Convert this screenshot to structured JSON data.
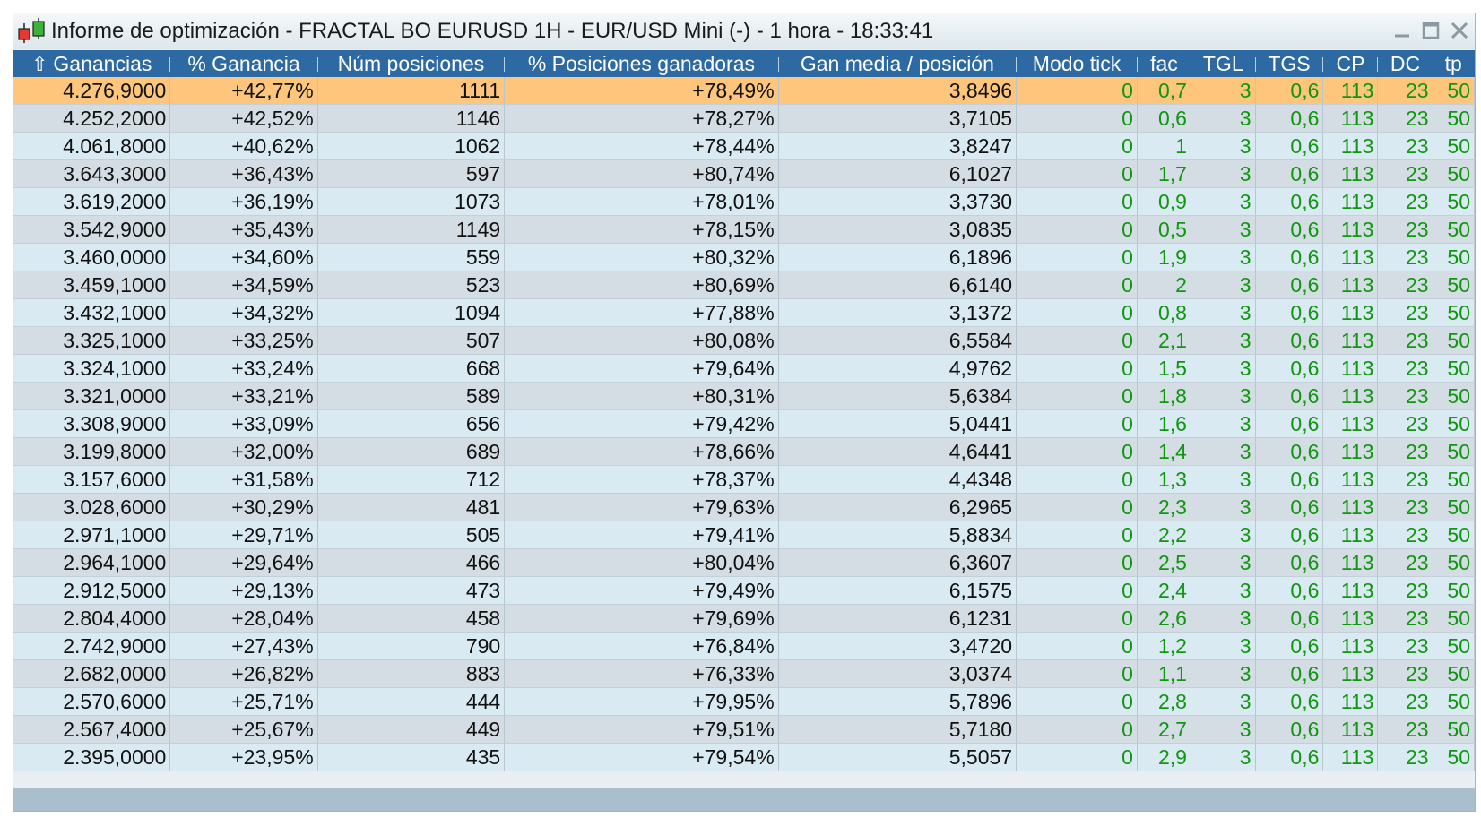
{
  "window": {
    "title": "Informe de optimización - FRACTAL BO EURUSD 1H - EUR/USD Mini (-) - 1 hora - 18:33:41"
  },
  "colors": {
    "header_bg": "#2d6aa3",
    "selected_row": "#fec67c",
    "param_text": "#119611"
  },
  "table": {
    "sort_icon": "sort-up-arrow-icon",
    "sort_glyph": "⇧",
    "columns": [
      "Ganancias",
      "% Ganancia",
      "Núm posiciones",
      "% Posiciones ganadoras",
      "Gan media / posición",
      "Modo tick",
      "fac",
      "TGL",
      "TGS",
      "CP",
      "DC",
      "tp"
    ],
    "selected_row": 0,
    "rows": [
      [
        "4.276,9000",
        "+42,77%",
        "1111",
        "+78,49%",
        "3,8496",
        "0",
        "0,7",
        "3",
        "0,6",
        "113",
        "23",
        "50"
      ],
      [
        "4.252,2000",
        "+42,52%",
        "1146",
        "+78,27%",
        "3,7105",
        "0",
        "0,6",
        "3",
        "0,6",
        "113",
        "23",
        "50"
      ],
      [
        "4.061,8000",
        "+40,62%",
        "1062",
        "+78,44%",
        "3,8247",
        "0",
        "1",
        "3",
        "0,6",
        "113",
        "23",
        "50"
      ],
      [
        "3.643,3000",
        "+36,43%",
        "597",
        "+80,74%",
        "6,1027",
        "0",
        "1,7",
        "3",
        "0,6",
        "113",
        "23",
        "50"
      ],
      [
        "3.619,2000",
        "+36,19%",
        "1073",
        "+78,01%",
        "3,3730",
        "0",
        "0,9",
        "3",
        "0,6",
        "113",
        "23",
        "50"
      ],
      [
        "3.542,9000",
        "+35,43%",
        "1149",
        "+78,15%",
        "3,0835",
        "0",
        "0,5",
        "3",
        "0,6",
        "113",
        "23",
        "50"
      ],
      [
        "3.460,0000",
        "+34,60%",
        "559",
        "+80,32%",
        "6,1896",
        "0",
        "1,9",
        "3",
        "0,6",
        "113",
        "23",
        "50"
      ],
      [
        "3.459,1000",
        "+34,59%",
        "523",
        "+80,69%",
        "6,6140",
        "0",
        "2",
        "3",
        "0,6",
        "113",
        "23",
        "50"
      ],
      [
        "3.432,1000",
        "+34,32%",
        "1094",
        "+77,88%",
        "3,1372",
        "0",
        "0,8",
        "3",
        "0,6",
        "113",
        "23",
        "50"
      ],
      [
        "3.325,1000",
        "+33,25%",
        "507",
        "+80,08%",
        "6,5584",
        "0",
        "2,1",
        "3",
        "0,6",
        "113",
        "23",
        "50"
      ],
      [
        "3.324,1000",
        "+33,24%",
        "668",
        "+79,64%",
        "4,9762",
        "0",
        "1,5",
        "3",
        "0,6",
        "113",
        "23",
        "50"
      ],
      [
        "3.321,0000",
        "+33,21%",
        "589",
        "+80,31%",
        "5,6384",
        "0",
        "1,8",
        "3",
        "0,6",
        "113",
        "23",
        "50"
      ],
      [
        "3.308,9000",
        "+33,09%",
        "656",
        "+79,42%",
        "5,0441",
        "0",
        "1,6",
        "3",
        "0,6",
        "113",
        "23",
        "50"
      ],
      [
        "3.199,8000",
        "+32,00%",
        "689",
        "+78,66%",
        "4,6441",
        "0",
        "1,4",
        "3",
        "0,6",
        "113",
        "23",
        "50"
      ],
      [
        "3.157,6000",
        "+31,58%",
        "712",
        "+78,37%",
        "4,4348",
        "0",
        "1,3",
        "3",
        "0,6",
        "113",
        "23",
        "50"
      ],
      [
        "3.028,6000",
        "+30,29%",
        "481",
        "+79,63%",
        "6,2965",
        "0",
        "2,3",
        "3",
        "0,6",
        "113",
        "23",
        "50"
      ],
      [
        "2.971,1000",
        "+29,71%",
        "505",
        "+79,41%",
        "5,8834",
        "0",
        "2,2",
        "3",
        "0,6",
        "113",
        "23",
        "50"
      ],
      [
        "2.964,1000",
        "+29,64%",
        "466",
        "+80,04%",
        "6,3607",
        "0",
        "2,5",
        "3",
        "0,6",
        "113",
        "23",
        "50"
      ],
      [
        "2.912,5000",
        "+29,13%",
        "473",
        "+79,49%",
        "6,1575",
        "0",
        "2,4",
        "3",
        "0,6",
        "113",
        "23",
        "50"
      ],
      [
        "2.804,4000",
        "+28,04%",
        "458",
        "+79,69%",
        "6,1231",
        "0",
        "2,6",
        "3",
        "0,6",
        "113",
        "23",
        "50"
      ],
      [
        "2.742,9000",
        "+27,43%",
        "790",
        "+76,84%",
        "3,4720",
        "0",
        "1,2",
        "3",
        "0,6",
        "113",
        "23",
        "50"
      ],
      [
        "2.682,0000",
        "+26,82%",
        "883",
        "+76,33%",
        "3,0374",
        "0",
        "1,1",
        "3",
        "0,6",
        "113",
        "23",
        "50"
      ],
      [
        "2.570,6000",
        "+25,71%",
        "444",
        "+79,95%",
        "5,7896",
        "0",
        "2,8",
        "3",
        "0,6",
        "113",
        "23",
        "50"
      ],
      [
        "2.567,4000",
        "+25,67%",
        "449",
        "+79,51%",
        "5,7180",
        "0",
        "2,7",
        "3",
        "0,6",
        "113",
        "23",
        "50"
      ],
      [
        "2.395,0000",
        "+23,95%",
        "435",
        "+79,54%",
        "5,5057",
        "0",
        "2,9",
        "3",
        "0,6",
        "113",
        "23",
        "50"
      ]
    ]
  }
}
